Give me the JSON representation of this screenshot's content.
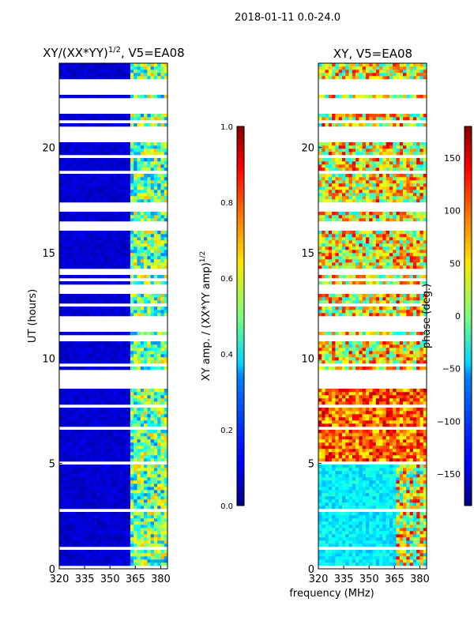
{
  "chart_data": [
    {
      "type": "heatmap",
      "suptitle": "2018-01-11 0.0-24.0",
      "title": "XY/(XX*YY)",
      "title_sup": "1/2",
      "title_suffix": ", V5=EA08",
      "xlabel": "frequency (MHz)",
      "ylabel": "UT (hours)",
      "xlim": [
        320,
        384
      ],
      "ylim": [
        0,
        24
      ],
      "xticks": [
        320,
        335,
        350,
        365,
        380
      ],
      "yticks": [
        0,
        5,
        10,
        15,
        20
      ],
      "colorbar": {
        "label": "XY amp. / (XX*YY amp)",
        "label_sup": "1/2",
        "range": [
          0.0,
          1.0
        ],
        "ticks": [
          "0.0",
          "0.2",
          "0.4",
          "0.6",
          "0.8",
          "1.0"
        ],
        "colormap": "jet"
      },
      "flagged_hours": [
        [
          22.5,
          23.2
        ],
        [
          21.6,
          22.3
        ],
        [
          20.3,
          21.0
        ],
        [
          17.1,
          17.4
        ],
        [
          16.0,
          16.4
        ],
        [
          13.1,
          13.5
        ],
        [
          0.9,
          1.1
        ],
        [
          4.9,
          5.1
        ]
      ]
    },
    {
      "type": "heatmap",
      "title": "XY, V5=EA08",
      "xlim": [
        320,
        384
      ],
      "ylim": [
        0,
        24
      ],
      "xticks": [
        320,
        335,
        350,
        365,
        380
      ],
      "yticks": [
        0,
        5,
        10,
        15,
        20
      ],
      "colorbar": {
        "label": "phase (deg.)",
        "range": [
          -180,
          180
        ],
        "ticks": [
          "−150",
          "−100",
          "−50",
          "0",
          "50",
          "100",
          "150"
        ],
        "tick_values": [
          -150,
          -100,
          -50,
          0,
          50,
          100,
          150
        ],
        "colormap": "jet"
      },
      "flagged_hours": [
        [
          22.5,
          23.2
        ],
        [
          21.6,
          22.3
        ],
        [
          20.3,
          21.0
        ],
        [
          17.1,
          17.4
        ],
        [
          16.0,
          16.4
        ],
        [
          13.1,
          13.5
        ],
        [
          0.9,
          1.1
        ],
        [
          4.9,
          5.1
        ]
      ]
    }
  ]
}
